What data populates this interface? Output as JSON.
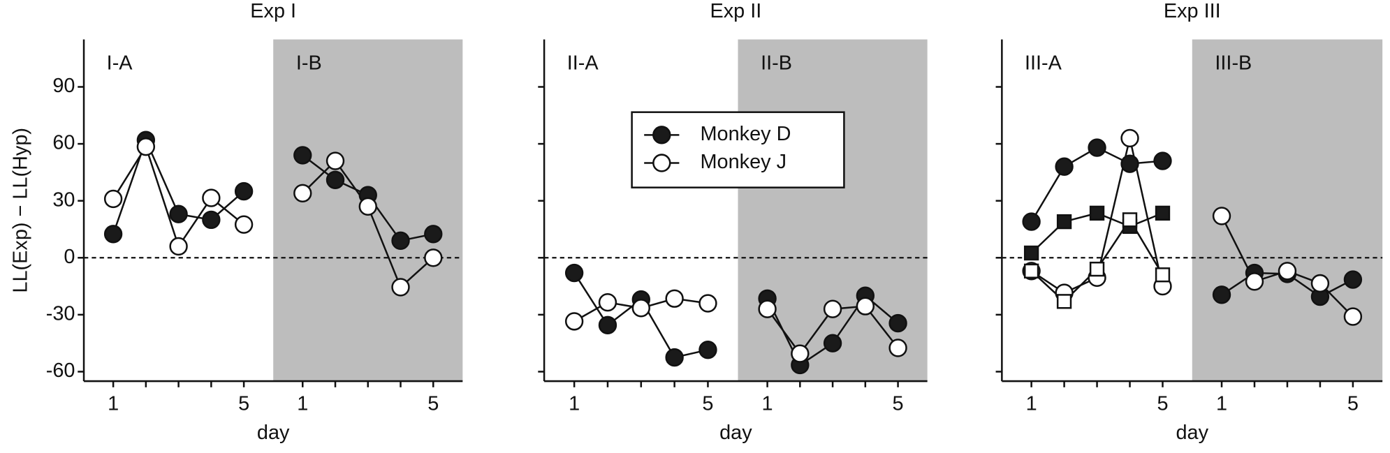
{
  "chart_data": [
    {
      "type": "line",
      "title": "Exp I",
      "xlabel": "day",
      "ylabel": "LL(Exp) − LL(Hyp)",
      "ylim": [
        -65,
        115
      ],
      "yticks": [
        -60,
        -30,
        0,
        30,
        60,
        90
      ],
      "show_ytick_labels": true,
      "shade_color": "#bdbdbd",
      "panels": [
        {
          "label": "I-A",
          "shaded": false,
          "xlim": [
            0.1,
            5.9
          ],
          "xticks": [
            1,
            5
          ],
          "series": [
            {
              "color": "#1a1a1a",
              "marker": "circle",
              "x": [
                1,
                2,
                3,
                4,
                5
              ],
              "values": [
                12.5,
                62,
                23,
                20,
                35
              ]
            },
            {
              "color": "#ffffff",
              "marker": "circle",
              "x": [
                1,
                2,
                3,
                4,
                5
              ],
              "values": [
                31,
                58.5,
                6,
                31.5,
                17.5
              ]
            }
          ]
        },
        {
          "label": "I-B",
          "shaded": true,
          "xlim": [
            0.1,
            5.9
          ],
          "xticks": [
            1,
            5
          ],
          "series": [
            {
              "color": "#1a1a1a",
              "marker": "circle",
              "x": [
                1,
                2,
                3,
                4,
                5
              ],
              "values": [
                54,
                41,
                33,
                9,
                12.5
              ]
            },
            {
              "color": "#ffffff",
              "marker": "circle",
              "x": [
                1,
                2,
                3,
                4,
                5
              ],
              "values": [
                34,
                51,
                27,
                -15.5,
                0
              ]
            }
          ]
        }
      ]
    },
    {
      "type": "line",
      "title": "Exp II",
      "xlabel": "day",
      "ylim": [
        -65,
        115
      ],
      "yticks": [
        -60,
        -30,
        0,
        30,
        60,
        90
      ],
      "show_ytick_labels": false,
      "shade_color": "#bdbdbd",
      "legend": "upper center",
      "panels": [
        {
          "label": "II-A",
          "shaded": false,
          "xlim": [
            0.1,
            5.9
          ],
          "xticks": [
            1,
            5
          ],
          "series": [
            {
              "name": "Monkey D",
              "color": "#1a1a1a",
              "marker": "circle",
              "x": [
                1,
                2,
                3,
                4,
                5
              ],
              "values": [
                -8,
                -35.5,
                -22,
                -52.5,
                -48.5
              ]
            },
            {
              "name": "Monkey J",
              "color": "#ffffff",
              "marker": "circle",
              "x": [
                1,
                2,
                3,
                4,
                5
              ],
              "values": [
                -33.5,
                -23.5,
                -26.5,
                -21.5,
                -24
              ]
            }
          ]
        },
        {
          "label": "II-B",
          "shaded": true,
          "xlim": [
            0.1,
            5.9
          ],
          "xticks": [
            1,
            5
          ],
          "series": [
            {
              "color": "#1a1a1a",
              "marker": "circle",
              "x": [
                1,
                2,
                3,
                4,
                5
              ],
              "values": [
                -21.5,
                -56.5,
                -45,
                -20,
                -34.5
              ]
            },
            {
              "color": "#ffffff",
              "marker": "circle",
              "x": [
                1,
                2,
                3,
                4,
                5
              ],
              "values": [
                -27,
                -50.5,
                -27,
                -25.5,
                -47.5
              ]
            }
          ]
        }
      ]
    },
    {
      "type": "line",
      "title": "Exp III",
      "xlabel": "day",
      "ylim": [
        -65,
        115
      ],
      "yticks": [
        -60,
        -30,
        0,
        30,
        60,
        90
      ],
      "show_ytick_labels": false,
      "shade_color": "#bdbdbd",
      "panels": [
        {
          "label": "III-A",
          "shaded": false,
          "xlim": [
            0.1,
            5.9
          ],
          "xticks": [
            1,
            5
          ],
          "series": [
            {
              "color": "#1a1a1a",
              "marker": "circle",
              "x": [
                1,
                2,
                3,
                4,
                5
              ],
              "values": [
                19,
                48,
                58,
                49.5,
                51
              ]
            },
            {
              "color": "#1a1a1a",
              "marker": "square",
              "x": [
                1,
                2,
                3,
                4,
                5
              ],
              "values": [
                2.5,
                19,
                23.5,
                16.5,
                23.5
              ]
            },
            {
              "color": "#ffffff",
              "marker": "circle",
              "x": [
                1,
                2,
                3,
                4,
                5
              ],
              "values": [
                -7,
                -18.5,
                -10.5,
                63,
                -15
              ]
            },
            {
              "color": "#ffffff",
              "marker": "square",
              "x": [
                1,
                2,
                3,
                4,
                5
              ],
              "values": [
                -7,
                -23,
                -6,
                20,
                -9
              ]
            }
          ]
        },
        {
          "label": "III-B",
          "shaded": true,
          "xlim": [
            0.1,
            5.9
          ],
          "xticks": [
            1,
            5
          ],
          "series": [
            {
              "color": "#1a1a1a",
              "marker": "circle",
              "x": [
                1,
                2,
                3,
                4,
                5
              ],
              "values": [
                -19.5,
                -8,
                -8.5,
                -20.5,
                -11.5
              ]
            },
            {
              "color": "#ffffff",
              "marker": "circle",
              "x": [
                1,
                2,
                3,
                4,
                5
              ],
              "values": [
                22,
                -12.5,
                -7,
                -13.5,
                -31
              ]
            }
          ]
        }
      ]
    }
  ]
}
